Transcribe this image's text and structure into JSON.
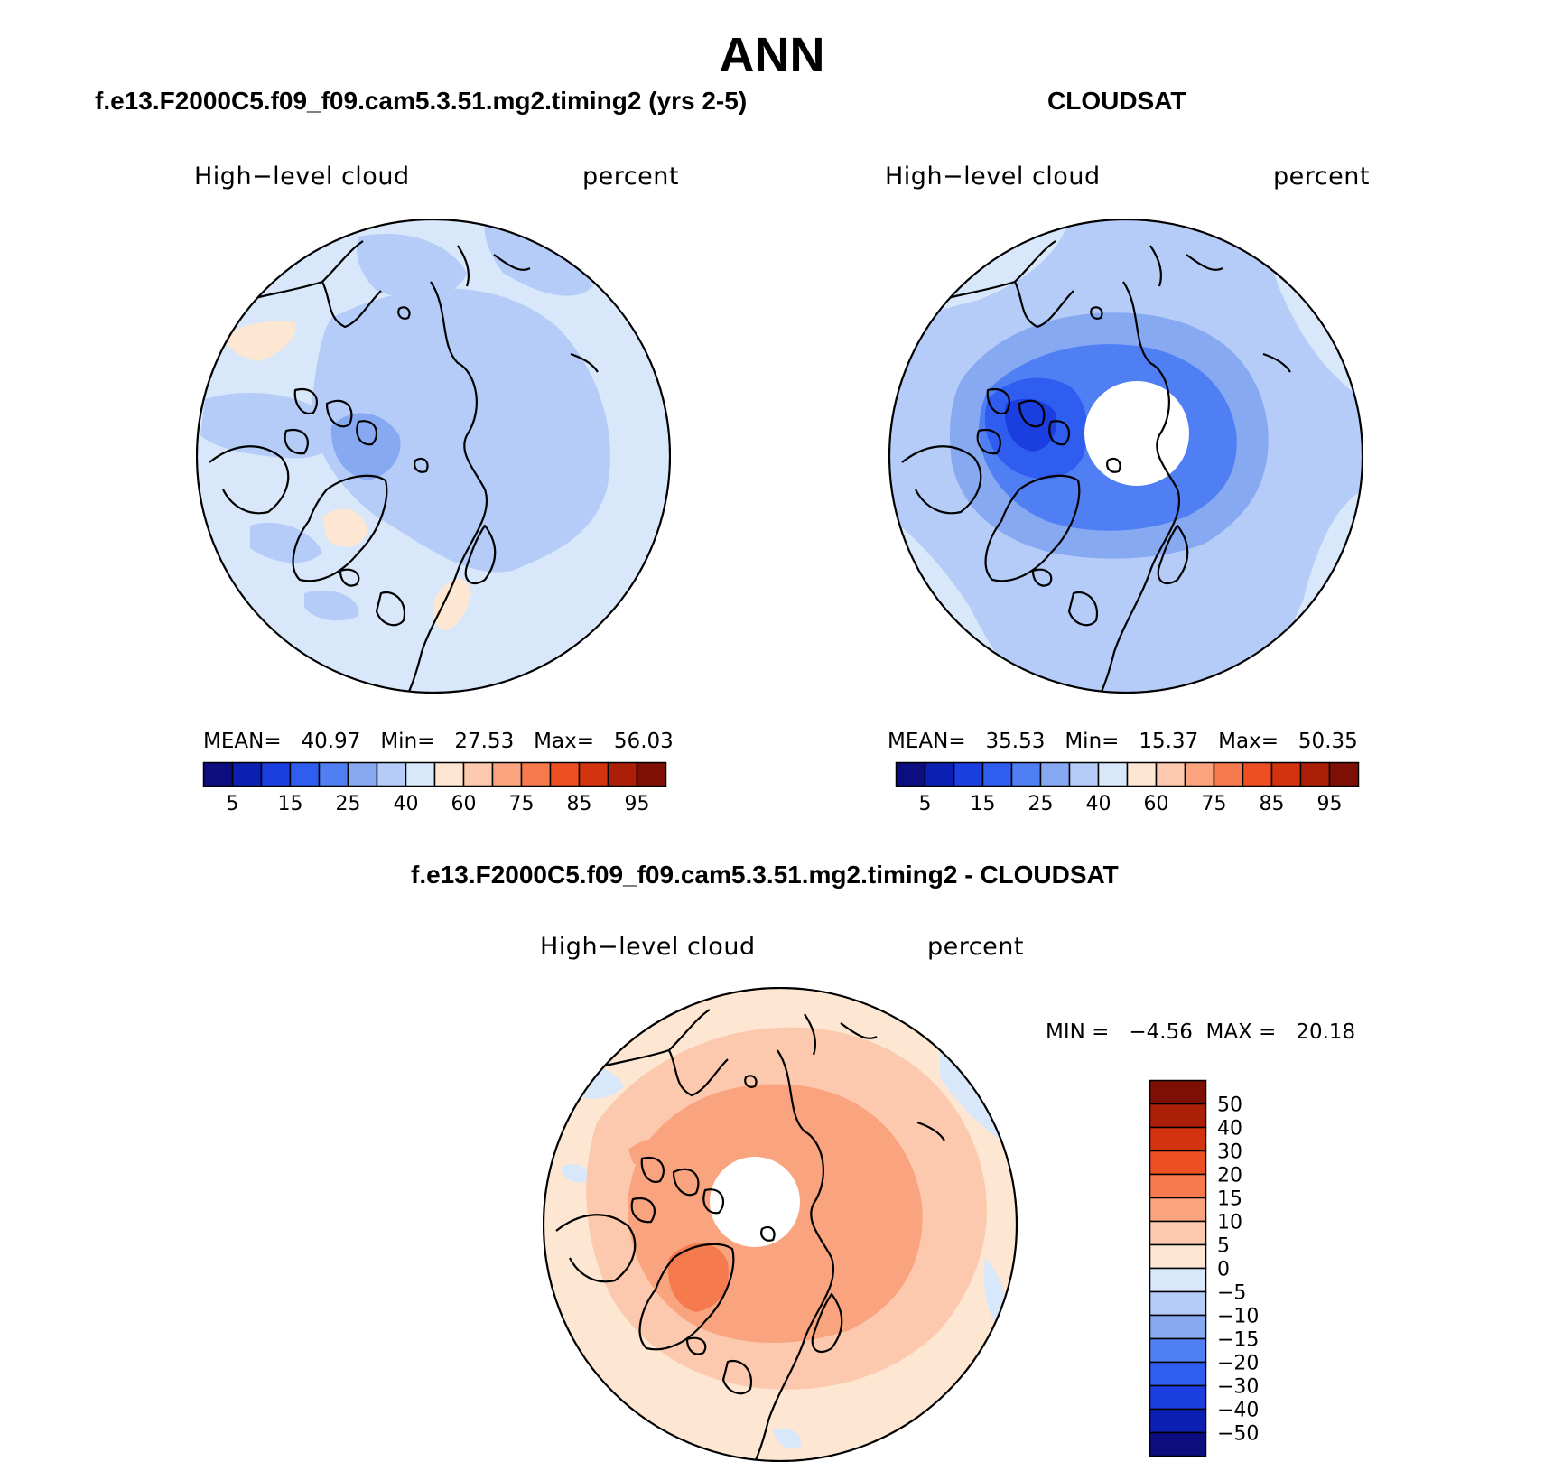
{
  "figure": {
    "title": "ANN",
    "variable_label": "High−level cloud",
    "units_label": "percent",
    "projection": "north-polar-stereographic"
  },
  "panels": [
    {
      "id": "model",
      "case_title": "f.e13.F2000C5.f09_f09.cam5.3.51.mg2.timing2 (yrs 2-5)",
      "stats": {
        "mean_label": "MEAN=",
        "mean": "40.97",
        "min_label": "Min=",
        "min": "27.53",
        "max_label": "Max=",
        "max": "56.03"
      },
      "dominant_field": "light-blue 40-50% with darker blue near the Canadian Archipelago and small peach patches",
      "polar_hole": false
    },
    {
      "id": "obs",
      "case_title": "CLOUDSAT",
      "stats": {
        "mean_label": "MEAN=",
        "mean": "35.53",
        "min_label": "Min=",
        "min": "15.37",
        "max_label": "Max=",
        "max": "50.35"
      },
      "dominant_field": "blue 20-40% darker toward the pole with a missing-data hole at the pole",
      "polar_hole": true
    },
    {
      "id": "diff",
      "case_title": "f.e13.F2000C5.f09_f09.cam5.3.51.mg2.timing2 - CLOUDSAT",
      "stats": {
        "min_label": "MIN =",
        "min": "−4.56",
        "max_label": "MAX =",
        "max": "20.18"
      },
      "dominant_field": "positive 0-15% differences, strongest over Greenland, missing-data hole at the pole",
      "polar_hole": true
    }
  ],
  "colorbars": {
    "abs": {
      "orientation": "horizontal",
      "colors": [
        "#0c0e80",
        "#0c1fb3",
        "#1a3ee0",
        "#2f5df0",
        "#4f7ff2",
        "#86a9f2",
        "#b4ccf7",
        "#d8e7fa",
        "#fde6d2",
        "#fcc9ae",
        "#f9a47e",
        "#f57a4d",
        "#ec4f22",
        "#d3330e",
        "#ab1e07",
        "#7e0f05"
      ],
      "labels": [
        "5",
        "15",
        "25",
        "40",
        "60",
        "75",
        "85",
        "95"
      ]
    },
    "diff": {
      "orientation": "vertical",
      "colors": [
        "#7e0f05",
        "#ab1e07",
        "#d3330e",
        "#ec4f22",
        "#f57a4d",
        "#f9a47e",
        "#fcc9ae",
        "#fde6d2",
        "#d8e7fa",
        "#b4ccf7",
        "#86a9f2",
        "#4f7ff2",
        "#2f5df0",
        "#1a3ee0",
        "#0c1fb3",
        "#0c0e80"
      ],
      "labels": [
        "50",
        "40",
        "30",
        "20",
        "15",
        "10",
        "5",
        "0",
        "−5",
        "−10",
        "−15",
        "−20",
        "−30",
        "−40",
        "−50"
      ]
    }
  },
  "colors": {
    "land_outline": "#000000",
    "missing_data": "#ffffff",
    "frame": "#000000"
  }
}
